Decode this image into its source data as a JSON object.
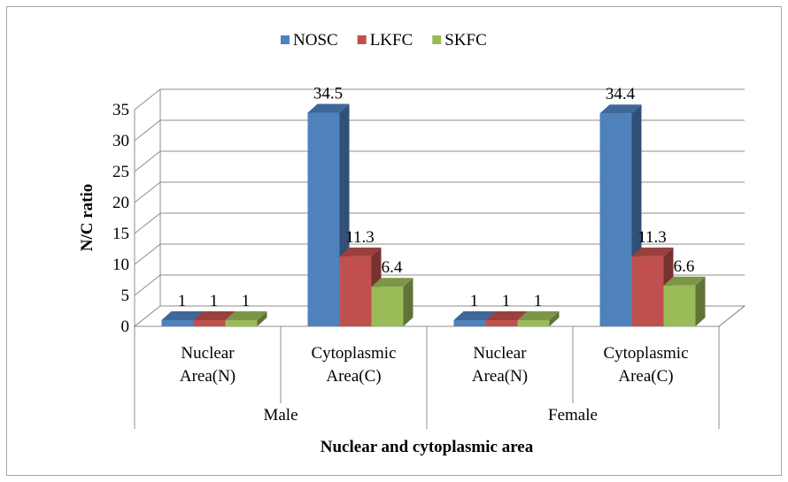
{
  "chart_data": {
    "type": "bar",
    "xlabel": "Nuclear and cytoplasmic area",
    "ylabel": "N/C ratio",
    "ylim": [
      0,
      35
    ],
    "yticks": [
      0,
      5,
      10,
      15,
      20,
      25,
      30,
      35
    ],
    "grid": true,
    "legend_position": "top",
    "groups": [
      "Male",
      "Female"
    ],
    "categories": [
      {
        "group": "Male",
        "line1": "Nuclear",
        "line2": "Area(N)"
      },
      {
        "group": "Male",
        "line1": "Cytoplasmic",
        "line2": "Area(C)"
      },
      {
        "group": "Female",
        "line1": "Nuclear",
        "line2": "Area(N)"
      },
      {
        "group": "Female",
        "line1": "Cytoplasmic",
        "line2": "Area(C)"
      }
    ],
    "series": [
      {
        "name": "NOSC",
        "values": [
          1,
          34.5,
          1,
          34.4
        ],
        "labels": [
          "1",
          "34.5",
          "1",
          "34.4"
        ],
        "color": "#4f81bd"
      },
      {
        "name": "LKFC",
        "values": [
          1,
          11.3,
          1,
          11.3
        ],
        "labels": [
          "1",
          "11.3",
          "1",
          "11.3"
        ],
        "color": "#c0504d"
      },
      {
        "name": "SKFC",
        "values": [
          1,
          6.4,
          1,
          6.6
        ],
        "labels": [
          "1",
          "6.4",
          "1",
          "6.6"
        ],
        "color": "#9bbb59"
      }
    ]
  }
}
